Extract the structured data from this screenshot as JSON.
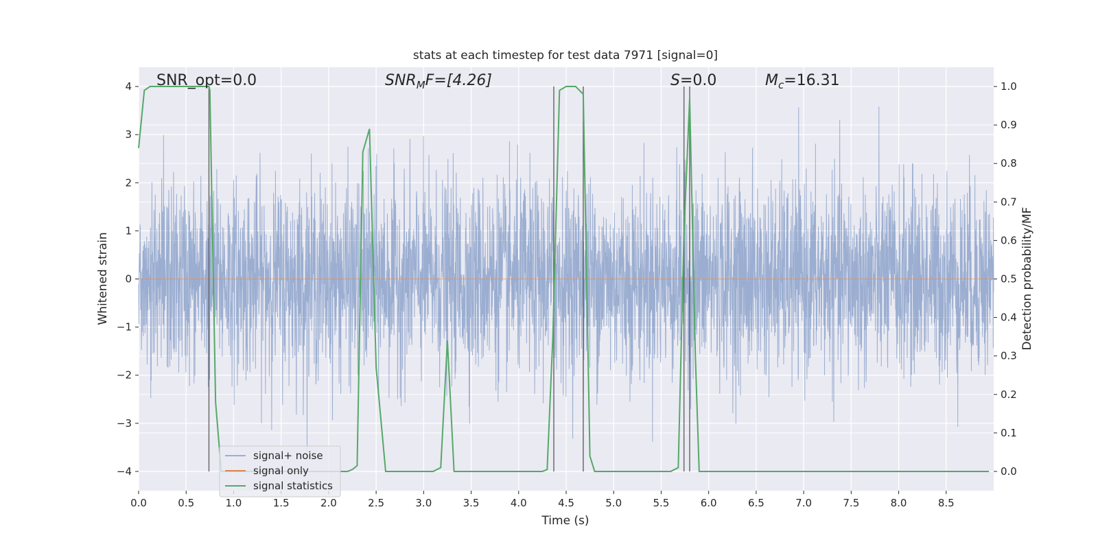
{
  "chart_data": {
    "type": "line",
    "title": "stats at each timestep for test data 7971 [signal=0]",
    "xlabel": "Time (s)",
    "ylabel_left": "Whitened strain",
    "ylabel_right": "Detection probability/MF",
    "xlim": [
      0.0,
      9.0
    ],
    "ylim_left": [
      -4.4,
      4.4
    ],
    "ylim_right": [
      -0.05,
      1.05
    ],
    "xticks": [
      "0.0",
      "0.5",
      "1.0",
      "1.5",
      "2.0",
      "2.5",
      "3.0",
      "3.5",
      "4.0",
      "4.5",
      "5.0",
      "5.5",
      "6.0",
      "6.5",
      "7.0",
      "7.5",
      "8.0",
      "8.5"
    ],
    "yticks_left": [
      "4",
      "3",
      "2",
      "1",
      "0",
      "−1",
      "−2",
      "−3",
      "−4"
    ],
    "yticks_right": [
      "1.0",
      "0.9",
      "0.8",
      "0.7",
      "0.6",
      "0.5",
      "0.4",
      "0.3",
      "0.2",
      "0.1",
      "0.0"
    ],
    "grid": true,
    "legend_position": "lower-left",
    "annotations": {
      "snr_opt": "SNR_opt=0.0",
      "snr_mf_base": "SNR",
      "snr_mf_sub": "M",
      "snr_mf_rest": "F=[4.26]",
      "s_base": "S",
      "s_rest": "=0.0",
      "mc_base": "M",
      "mc_sub": "c",
      "mc_rest": "=16.31"
    },
    "series": [
      {
        "name": "signal+ noise",
        "axis": "left",
        "color": "#4c72b0",
        "description_range": [
          -3.6,
          3.8
        ],
        "style": "dense noise"
      },
      {
        "name": "signal only",
        "axis": "left",
        "color": "#dd8452",
        "x": [
          0.0,
          9.0
        ],
        "y": [
          0.0,
          0.0
        ]
      },
      {
        "name": "signal statistics",
        "axis": "right",
        "color": "#55a868",
        "x": [
          0.0,
          0.06,
          0.12,
          0.35,
          0.65,
          0.74,
          0.75,
          0.81,
          0.87,
          1.0,
          2.2,
          2.25,
          2.3,
          2.36,
          2.43,
          2.5,
          2.6,
          3.1,
          3.18,
          3.25,
          3.32,
          4.25,
          4.3,
          4.36,
          4.43,
          4.5,
          4.6,
          4.68,
          4.75,
          4.8,
          4.95,
          5.6,
          5.68,
          5.74,
          5.8,
          5.86,
          5.9,
          6.0,
          8.95
        ],
        "y": [
          0.84,
          0.99,
          1.0,
          1.0,
          1.0,
          1.0,
          0.99,
          0.18,
          0.0,
          0.0,
          0.0,
          0.005,
          0.015,
          0.83,
          0.89,
          0.27,
          0.0,
          0.0,
          0.01,
          0.34,
          0.0,
          0.0,
          0.005,
          0.35,
          0.99,
          1.0,
          1.0,
          0.98,
          0.04,
          0.0,
          0.0,
          0.0,
          0.01,
          0.62,
          0.97,
          0.3,
          0.0,
          0.0,
          0.0
        ]
      }
    ],
    "vertical_markers": [
      0.74,
      4.37,
      4.68,
      5.74,
      5.8
    ]
  }
}
